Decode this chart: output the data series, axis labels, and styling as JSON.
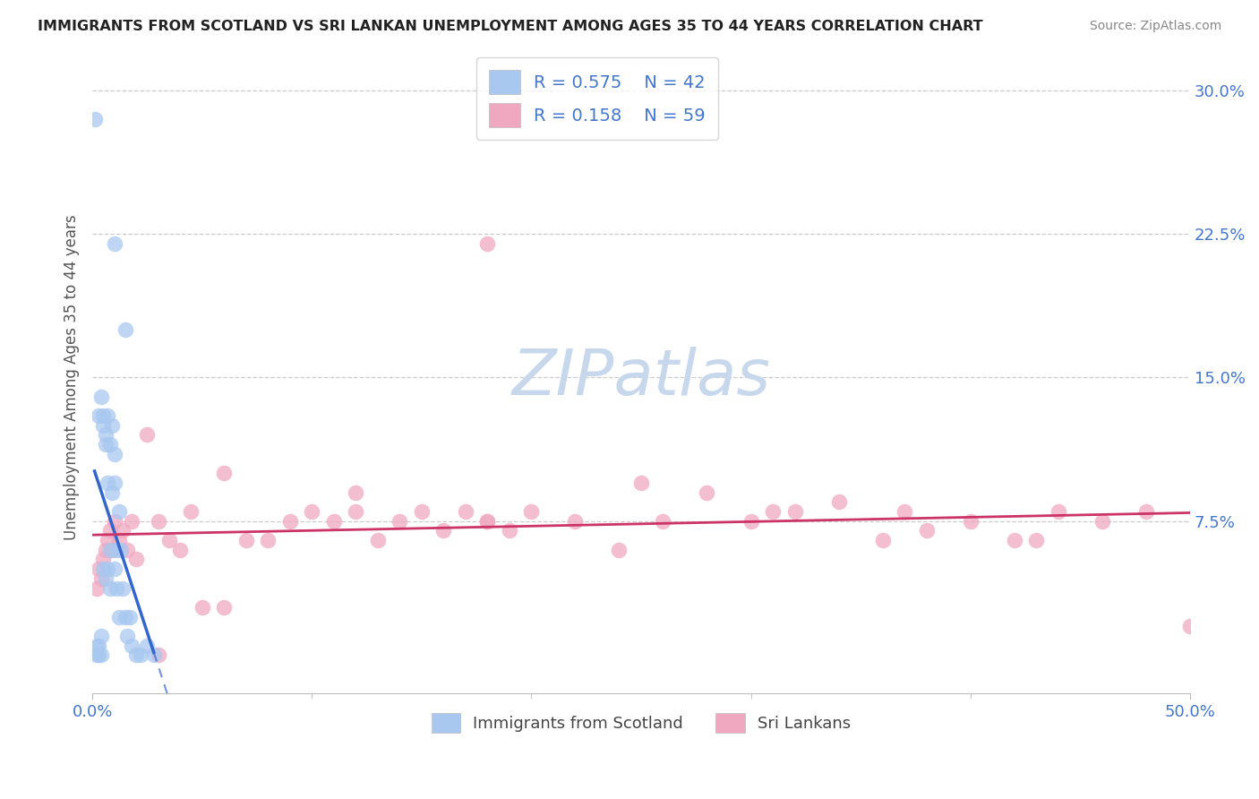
{
  "title": "IMMIGRANTS FROM SCOTLAND VS SRI LANKAN UNEMPLOYMENT AMONG AGES 35 TO 44 YEARS CORRELATION CHART",
  "source": "Source: ZipAtlas.com",
  "ylabel": "Unemployment Among Ages 35 to 44 years",
  "xlim": [
    0.0,
    0.5
  ],
  "ylim": [
    -0.015,
    0.315
  ],
  "xticks": [
    0.0,
    0.5
  ],
  "xticklabels": [
    "0.0%",
    "50.0%"
  ],
  "xticks_minor": [
    0.1,
    0.2,
    0.3,
    0.4
  ],
  "yticks": [
    0.075,
    0.15,
    0.225,
    0.3
  ],
  "yticklabels": [
    "7.5%",
    "15.0%",
    "22.5%",
    "30.0%"
  ],
  "legend1_label": "Immigrants from Scotland",
  "legend2_label": "Sri Lankans",
  "r1": 0.575,
  "n1": 42,
  "r2": 0.158,
  "n2": 59,
  "color_scotland": "#a8c8f0",
  "color_srilanka": "#f0a8c0",
  "color_scotland_line": "#3366cc",
  "color_srilanka_line": "#cc3366",
  "color_axis_labels": "#4477cc",
  "watermark_color": "#c8d8ec",
  "scotland_x": [
    0.001,
    0.002,
    0.002,
    0.003,
    0.003,
    0.003,
    0.004,
    0.004,
    0.004,
    0.005,
    0.005,
    0.005,
    0.006,
    0.006,
    0.006,
    0.007,
    0.007,
    0.007,
    0.008,
    0.008,
    0.008,
    0.009,
    0.009,
    0.01,
    0.01,
    0.01,
    0.011,
    0.011,
    0.012,
    0.012,
    0.013,
    0.014,
    0.015,
    0.016,
    0.017,
    0.018,
    0.02,
    0.022,
    0.025,
    0.028,
    0.01,
    0.015
  ],
  "scotland_y": [
    0.285,
    0.005,
    0.01,
    0.13,
    0.01,
    0.005,
    0.14,
    0.015,
    0.005,
    0.13,
    0.125,
    0.05,
    0.12,
    0.115,
    0.045,
    0.13,
    0.095,
    0.05,
    0.115,
    0.06,
    0.04,
    0.125,
    0.09,
    0.095,
    0.11,
    0.05,
    0.06,
    0.04,
    0.08,
    0.025,
    0.06,
    0.04,
    0.025,
    0.015,
    0.025,
    0.01,
    0.005,
    0.005,
    0.01,
    0.005,
    0.22,
    0.175
  ],
  "srilanka_x": [
    0.002,
    0.003,
    0.004,
    0.005,
    0.006,
    0.007,
    0.008,
    0.009,
    0.01,
    0.012,
    0.014,
    0.016,
    0.018,
    0.02,
    0.025,
    0.03,
    0.035,
    0.04,
    0.045,
    0.05,
    0.06,
    0.07,
    0.08,
    0.09,
    0.1,
    0.11,
    0.12,
    0.13,
    0.14,
    0.15,
    0.16,
    0.17,
    0.18,
    0.19,
    0.2,
    0.22,
    0.24,
    0.26,
    0.28,
    0.3,
    0.32,
    0.34,
    0.36,
    0.38,
    0.4,
    0.42,
    0.44,
    0.46,
    0.48,
    0.06,
    0.12,
    0.18,
    0.25,
    0.31,
    0.37,
    0.43,
    0.18,
    0.03,
    0.5
  ],
  "srilanka_y": [
    0.04,
    0.05,
    0.045,
    0.055,
    0.06,
    0.065,
    0.07,
    0.06,
    0.075,
    0.065,
    0.07,
    0.06,
    0.075,
    0.055,
    0.12,
    0.075,
    0.065,
    0.06,
    0.08,
    0.03,
    0.03,
    0.065,
    0.065,
    0.075,
    0.08,
    0.075,
    0.08,
    0.065,
    0.075,
    0.08,
    0.07,
    0.08,
    0.075,
    0.07,
    0.08,
    0.075,
    0.06,
    0.075,
    0.09,
    0.075,
    0.08,
    0.085,
    0.065,
    0.07,
    0.075,
    0.065,
    0.08,
    0.075,
    0.08,
    0.1,
    0.09,
    0.075,
    0.095,
    0.08,
    0.08,
    0.065,
    0.22,
    0.005,
    0.02
  ]
}
